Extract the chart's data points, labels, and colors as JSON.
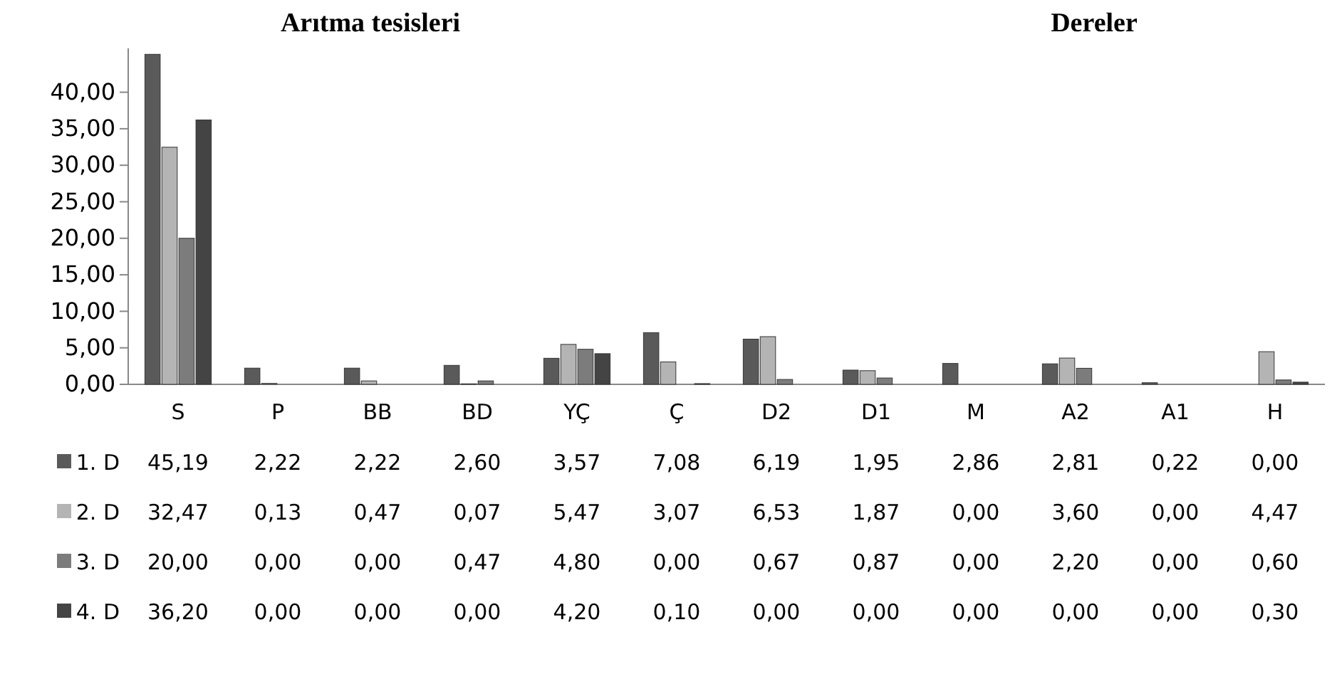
{
  "chart_data": {
    "type": "bar",
    "title": "Arıtma tesisleri",
    "subtitle": "Dereler",
    "categories": [
      "S",
      "P",
      "BB",
      "BD",
      "YÇ",
      "Ç",
      "D2",
      "D1",
      "M",
      "A2",
      "A1",
      "H"
    ],
    "series": [
      {
        "name": "1. D",
        "color": "#5a5a5a",
        "values": [
          45.19,
          2.22,
          2.22,
          2.6,
          3.57,
          7.08,
          6.19,
          1.95,
          2.86,
          2.81,
          0.22,
          0.0
        ],
        "value_labels": [
          "45,19",
          "2,22",
          "2,22",
          "2,60",
          "3,57",
          "7,08",
          "6,19",
          "1,95",
          "2,86",
          "2,81",
          "0,22",
          "0,00"
        ]
      },
      {
        "name": "2. D",
        "color": "#b4b4b4",
        "values": [
          32.47,
          0.13,
          0.47,
          0.07,
          5.47,
          3.07,
          6.53,
          1.87,
          0.0,
          3.6,
          0.0,
          4.47
        ],
        "value_labels": [
          "32,47",
          "0,13",
          "0,47",
          "0,07",
          "5,47",
          "3,07",
          "6,53",
          "1,87",
          "0,00",
          "3,60",
          "0,00",
          "4,47"
        ]
      },
      {
        "name": "3. D",
        "color": "#7c7c7c",
        "values": [
          20.0,
          0.0,
          0.0,
          0.47,
          4.8,
          0.0,
          0.67,
          0.87,
          0.0,
          2.2,
          0.0,
          0.6
        ],
        "value_labels": [
          "20,00",
          "0,00",
          "0,00",
          "0,47",
          "4,80",
          "0,00",
          "0,67",
          "0,87",
          "0,00",
          "2,20",
          "0,00",
          "0,60"
        ]
      },
      {
        "name": "4. D",
        "color": "#444444",
        "values": [
          36.2,
          0.0,
          0.0,
          0.0,
          4.2,
          0.1,
          0.0,
          0.0,
          0.0,
          0.0,
          0.0,
          0.3
        ],
        "value_labels": [
          "36,20",
          "0,00",
          "0,00",
          "0,00",
          "4,20",
          "0,10",
          "0,00",
          "0,00",
          "0,00",
          "0,00",
          "0,00",
          "0,30"
        ]
      }
    ],
    "ylim": [
      0,
      46
    ],
    "yticks": [
      {
        "value": 0,
        "label": "0,00"
      },
      {
        "value": 5,
        "label": "5,00"
      },
      {
        "value": 10,
        "label": "10,00"
      },
      {
        "value": 15,
        "label": "15,00"
      },
      {
        "value": 20,
        "label": "20,00"
      },
      {
        "value": 25,
        "label": "25,00"
      },
      {
        "value": 30,
        "label": "30,00"
      },
      {
        "value": 35,
        "label": "35,00"
      },
      {
        "value": 40,
        "label": "40,00"
      }
    ],
    "legend": "bottom left"
  }
}
